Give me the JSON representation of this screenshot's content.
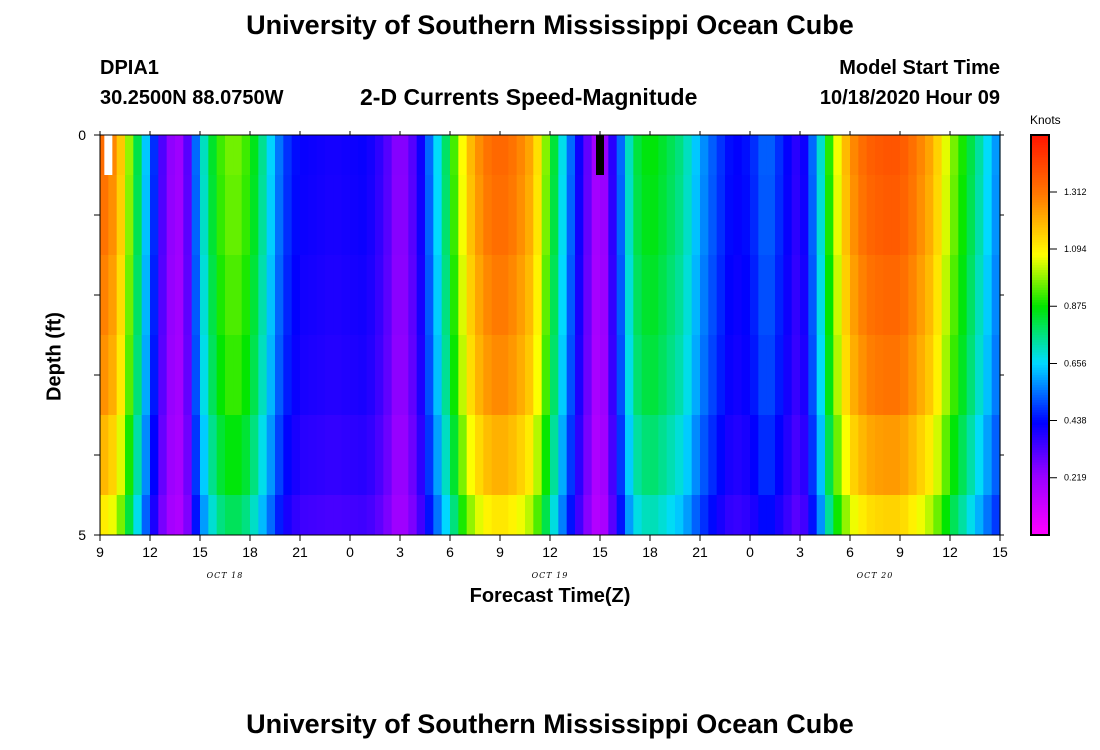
{
  "header": {
    "title": "University of Southern Mississippi Ocean Cube",
    "station_id": "DPIA1",
    "coordinates": "30.2500N 88.0750W",
    "subtitle": "2-D Currents Speed-Magnitude",
    "model_start_label": "Model Start Time",
    "model_start_value": "10/18/2020 Hour 09"
  },
  "footer": {
    "title": "University of Southern Mississippi Ocean Cube"
  },
  "chart_data": {
    "type": "heatmap",
    "title": "2-D Currents Speed-Magnitude",
    "xlabel": "Forecast Time(Z)",
    "ylabel": "Depth (ft)",
    "x_range_hours": [
      0,
      54
    ],
    "y_ticks": [
      "0",
      "5"
    ],
    "x_ticks": [
      "9",
      "12",
      "15",
      "18",
      "21",
      "0",
      "3",
      "6",
      "9",
      "12",
      "15",
      "18",
      "21",
      "0",
      "3",
      "6",
      "9",
      "12",
      "15"
    ],
    "date_labels": [
      {
        "text": "OCT 18",
        "hour": 7.5
      },
      {
        "text": "OCT 19",
        "hour": 27
      },
      {
        "text": "OCT 20",
        "hour": 46.5
      }
    ],
    "colorbar": {
      "units": "Knots",
      "min": 0,
      "max": 1.53,
      "ticks": [
        "1.312",
        "1.094",
        "0.875",
        "0.656",
        "0.438",
        "0.219"
      ],
      "tick_values": [
        1.312,
        1.094,
        0.875,
        0.656,
        0.438,
        0.219
      ]
    },
    "markers": [
      {
        "hour": 0.5,
        "color": "#ffffff"
      },
      {
        "hour": 30,
        "color": "#000000"
      }
    ],
    "depth_rows": 5,
    "time_step_hours": 0.5,
    "profile_keypoints": [
      [
        0,
        1.35
      ],
      [
        1,
        1.25
      ],
      [
        2,
        0.9
      ],
      [
        3,
        0.55
      ],
      [
        4,
        0.25
      ],
      [
        5,
        0.2
      ],
      [
        6,
        0.65
      ],
      [
        7,
        0.9
      ],
      [
        8,
        0.98
      ],
      [
        9,
        0.9
      ],
      [
        10,
        0.7
      ],
      [
        11,
        0.5
      ],
      [
        12,
        0.42
      ],
      [
        14,
        0.4
      ],
      [
        16,
        0.42
      ],
      [
        17,
        0.35
      ],
      [
        18,
        0.22
      ],
      [
        19,
        0.35
      ],
      [
        20,
        0.6
      ],
      [
        21,
        0.85
      ],
      [
        22,
        1.15
      ],
      [
        23,
        1.3
      ],
      [
        24,
        1.35
      ],
      [
        25,
        1.3
      ],
      [
        26,
        1.2
      ],
      [
        27,
        0.9
      ],
      [
        28,
        0.6
      ],
      [
        29,
        0.35
      ],
      [
        30,
        0.15
      ],
      [
        31,
        0.45
      ],
      [
        32,
        0.8
      ],
      [
        33,
        0.88
      ],
      [
        34,
        0.82
      ],
      [
        35,
        0.75
      ],
      [
        36,
        0.6
      ],
      [
        37,
        0.5
      ],
      [
        38,
        0.42
      ],
      [
        39,
        0.45
      ],
      [
        40,
        0.55
      ],
      [
        41,
        0.45
      ],
      [
        42,
        0.35
      ],
      [
        43,
        0.6
      ],
      [
        43.5,
        0.8
      ],
      [
        44,
        1.0
      ],
      [
        45,
        1.25
      ],
      [
        46,
        1.35
      ],
      [
        47,
        1.38
      ],
      [
        48,
        1.38
      ],
      [
        49,
        1.3
      ],
      [
        50,
        1.2
      ],
      [
        51,
        1.0
      ],
      [
        52,
        0.85
      ],
      [
        53,
        0.7
      ],
      [
        54,
        0.55
      ]
    ],
    "row_factors": [
      1.0,
      0.99,
      0.97,
      0.95,
      0.9,
      0.83
    ]
  }
}
